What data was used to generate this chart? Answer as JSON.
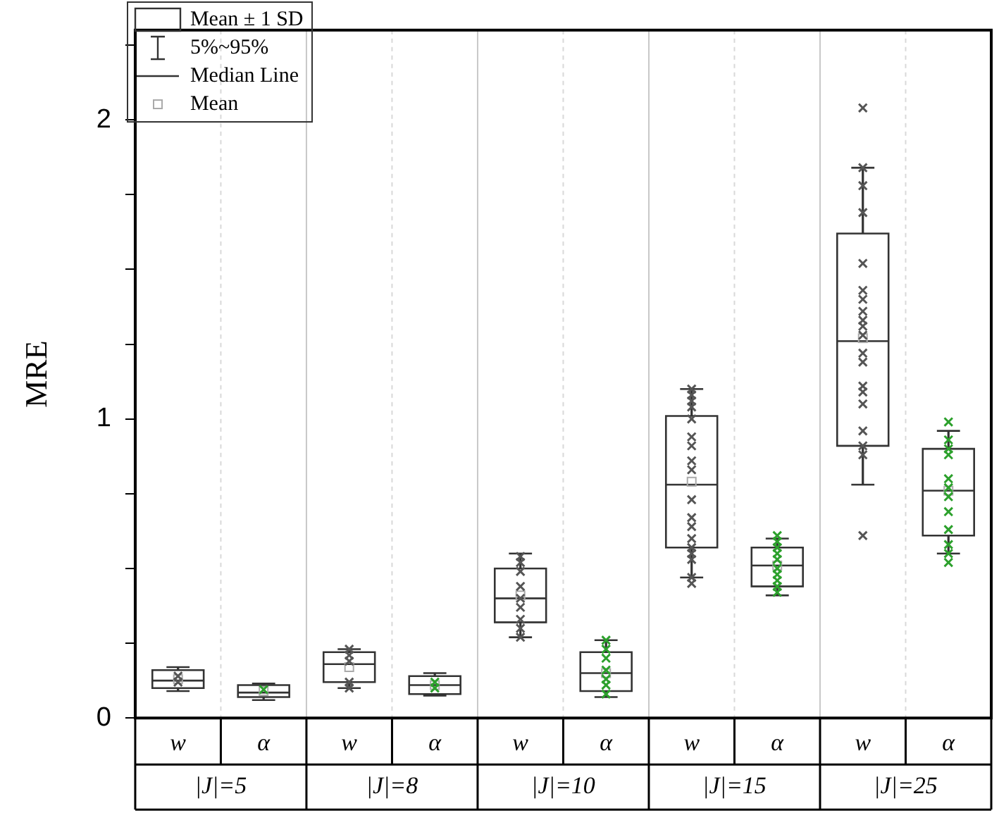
{
  "chart_data": {
    "type": "box",
    "ylabel": "MRE",
    "categories": [
      "w",
      "α",
      "w",
      "α",
      "w",
      "α",
      "w",
      "α",
      "w",
      "α"
    ],
    "ylim": [
      0,
      2.3
    ],
    "yticks": [
      0,
      {
        "value": 0.25,
        "label": null
      },
      {
        "value": 0.5,
        "label": null
      },
      {
        "value": 0.75,
        "label": null
      },
      1,
      {
        "value": 1.25,
        "label": null
      },
      {
        "value": 1.5,
        "label": null
      },
      {
        "value": 1.75,
        "label": null
      },
      2,
      {
        "value": 2.25,
        "label": null
      }
    ],
    "grid": "x",
    "marker": "cross",
    "annotations": [
      "Mean ± 1 SD",
      "5%~95%",
      "Median Line",
      "Mean",
      "|J|=5",
      "|J|=8",
      "|J|=10",
      "|J|=15",
      "|J|=25"
    ],
    "series": [
      {
        "type": "box",
        "color": "#333333",
        "boxes": [
          {
            "low": 0.09,
            "q1": 0.1,
            "median": 0.125,
            "q3": 0.16,
            "high": 0.17,
            "mean": 0.13
          },
          {
            "low": 0.06,
            "q1": 0.07,
            "median": 0.085,
            "q3": 0.11,
            "high": 0.115,
            "mean": 0.09
          },
          {
            "low": 0.1,
            "q1": 0.12,
            "median": 0.18,
            "q3": 0.22,
            "high": 0.23,
            "mean": 0.17
          },
          {
            "low": 0.075,
            "q1": 0.08,
            "median": 0.11,
            "q3": 0.14,
            "high": 0.15,
            "mean": 0.11
          },
          {
            "low": 0.27,
            "q1": 0.32,
            "median": 0.4,
            "q3": 0.5,
            "high": 0.55,
            "mean": 0.41
          },
          {
            "low": 0.07,
            "q1": 0.09,
            "median": 0.15,
            "q3": 0.22,
            "high": 0.26,
            "mean": 0.15
          },
          {
            "low": 0.47,
            "q1": 0.57,
            "median": 0.78,
            "q3": 1.01,
            "high": 1.1,
            "mean": 0.79
          },
          {
            "low": 0.41,
            "q1": 0.44,
            "median": 0.51,
            "q3": 0.57,
            "high": 0.6,
            "mean": 0.51
          },
          {
            "low": 0.78,
            "q1": 0.91,
            "median": 1.26,
            "q3": 1.62,
            "high": 1.84,
            "mean": 1.27
          },
          {
            "low": 0.55,
            "q1": 0.61,
            "median": 0.76,
            "q3": 0.9,
            "high": 0.96,
            "mean": 0.76
          }
        ]
      },
      {
        "type": "scatter",
        "colors": [
          "#555555",
          "#2ca02c",
          "#555555",
          "#2ca02c",
          "#555555",
          "#2ca02c",
          "#555555",
          "#2ca02c",
          "#555555",
          "#2ca02c"
        ],
        "values": [
          null,
          null,
          0.23,
          null,
          0.54,
          0.26,
          1.1,
          0.61,
          2.04,
          0.99
        ]
      },
      {
        "type": "scatter",
        "colors": [
          "#555555",
          "#2ca02c",
          "#555555",
          "#2ca02c",
          "#555555",
          "#2ca02c",
          "#555555",
          "#2ca02c",
          "#555555",
          "#2ca02c"
        ],
        "values": [
          0.14,
          0.095,
          0.21,
          0.12,
          0.52,
          0.23,
          1.08,
          0.59,
          1.84,
          0.93
        ]
      },
      {
        "type": "scatter",
        "colors": [
          "#555555",
          "#2ca02c",
          "#555555",
          "#2ca02c",
          "#555555",
          "#2ca02c",
          "#555555",
          "#2ca02c",
          "#555555",
          "#2ca02c"
        ],
        "values": [
          0.12,
          null,
          0.19,
          0.1,
          0.49,
          0.2,
          1.06,
          0.57,
          1.78,
          0.9
        ]
      },
      {
        "type": "scatter",
        "colors": [
          "#555555",
          "#2ca02c",
          "#555555",
          "#2ca02c",
          "#555555",
          "#2ca02c",
          "#555555",
          "#2ca02c",
          "#555555",
          "#2ca02c"
        ],
        "values": [
          null,
          null,
          0.12,
          null,
          0.44,
          0.16,
          1.04,
          0.55,
          1.69,
          0.88
        ]
      },
      {
        "type": "scatter",
        "colors": [
          "#555555",
          "#2ca02c",
          "#555555",
          "#2ca02c",
          "#555555",
          "#2ca02c",
          "#555555",
          "#2ca02c",
          "#555555",
          "#2ca02c"
        ],
        "values": [
          null,
          null,
          0.1,
          null,
          0.4,
          0.13,
          1.0,
          0.53,
          1.52,
          0.8
        ]
      },
      {
        "type": "scatter",
        "colors": [
          "#555555",
          "#2ca02c",
          "#555555",
          "#2ca02c",
          "#555555",
          "#2ca02c",
          "#555555",
          "#2ca02c",
          "#555555",
          "#2ca02c"
        ],
        "values": [
          null,
          null,
          null,
          null,
          0.37,
          0.11,
          0.94,
          0.5,
          1.43,
          0.77
        ]
      },
      {
        "type": "scatter",
        "colors": [
          "#555555",
          "#2ca02c",
          "#555555",
          "#2ca02c",
          "#555555",
          "#2ca02c",
          "#555555",
          "#2ca02c",
          "#555555",
          "#2ca02c"
        ],
        "values": [
          null,
          null,
          null,
          null,
          0.33,
          0.08,
          0.91,
          0.48,
          1.4,
          0.74
        ]
      },
      {
        "type": "scatter",
        "colors": [
          "#555555",
          "#2ca02c",
          "#555555",
          "#2ca02c",
          "#555555",
          "#2ca02c",
          "#555555",
          "#2ca02c",
          "#555555",
          "#2ca02c"
        ],
        "values": [
          null,
          null,
          null,
          null,
          0.3,
          null,
          0.86,
          0.46,
          1.36,
          0.69
        ]
      },
      {
        "type": "scatter",
        "colors": [
          "#555555",
          "#2ca02c",
          "#555555",
          "#2ca02c",
          "#555555",
          "#2ca02c",
          "#555555",
          "#2ca02c",
          "#555555",
          "#2ca02c"
        ],
        "values": [
          null,
          null,
          null,
          null,
          0.27,
          null,
          0.83,
          0.44,
          1.33,
          0.63
        ]
      },
      {
        "type": "scatter",
        "colors": [
          "#555555",
          "#2ca02c",
          "#555555",
          "#2ca02c",
          "#555555",
          "#2ca02c",
          "#555555",
          "#2ca02c",
          "#555555",
          "#2ca02c"
        ],
        "values": [
          null,
          null,
          null,
          null,
          null,
          null,
          0.73,
          0.42,
          1.31,
          0.58
        ]
      },
      {
        "type": "scatter",
        "colors": [
          "#555555",
          "#2ca02c",
          "#555555",
          "#2ca02c",
          "#555555",
          "#2ca02c",
          "#555555",
          "#2ca02c",
          "#555555",
          "#2ca02c"
        ],
        "values": [
          null,
          null,
          null,
          null,
          null,
          null,
          0.67,
          null,
          1.28,
          0.55
        ]
      },
      {
        "type": "scatter",
        "colors": [
          "#555555",
          "#2ca02c",
          "#555555",
          "#2ca02c",
          "#555555",
          "#2ca02c",
          "#555555",
          "#2ca02c",
          "#555555",
          "#2ca02c"
        ],
        "values": [
          null,
          null,
          null,
          null,
          null,
          null,
          0.64,
          null,
          1.22,
          0.52
        ]
      },
      {
        "type": "scatter",
        "colors": [
          "#555555",
          "#2ca02c",
          "#555555",
          "#2ca02c",
          "#555555",
          "#2ca02c",
          "#555555",
          "#2ca02c",
          "#555555",
          "#2ca02c"
        ],
        "values": [
          null,
          null,
          null,
          null,
          null,
          null,
          0.6,
          null,
          1.19,
          null
        ]
      },
      {
        "type": "scatter",
        "colors": [
          "#555555",
          "#2ca02c",
          "#555555",
          "#2ca02c",
          "#555555",
          "#2ca02c",
          "#555555",
          "#2ca02c",
          "#555555",
          "#2ca02c"
        ],
        "values": [
          null,
          null,
          null,
          null,
          null,
          null,
          0.57,
          null,
          1.11,
          null
        ]
      },
      {
        "type": "scatter",
        "colors": [
          "#555555",
          "#2ca02c",
          "#555555",
          "#2ca02c",
          "#555555",
          "#2ca02c",
          "#555555",
          "#2ca02c",
          "#555555",
          "#2ca02c"
        ],
        "values": [
          null,
          null,
          null,
          null,
          null,
          null,
          0.55,
          null,
          1.09,
          null
        ]
      },
      {
        "type": "scatter",
        "colors": [
          "#555555",
          "#2ca02c",
          "#555555",
          "#2ca02c",
          "#555555",
          "#2ca02c",
          "#555555",
          "#2ca02c",
          "#555555",
          "#2ca02c"
        ],
        "values": [
          null,
          null,
          null,
          null,
          null,
          null,
          0.53,
          null,
          1.05,
          null
        ]
      },
      {
        "type": "scatter",
        "colors": [
          "#555555",
          "#2ca02c",
          "#555555",
          "#2ca02c",
          "#555555",
          "#2ca02c",
          "#555555",
          "#2ca02c",
          "#555555",
          "#2ca02c"
        ],
        "values": [
          null,
          null,
          null,
          null,
          null,
          null,
          0.47,
          null,
          0.96,
          null
        ]
      },
      {
        "type": "scatter",
        "colors": [
          "#555555",
          "#2ca02c",
          "#555555",
          "#2ca02c",
          "#555555",
          "#2ca02c",
          "#555555",
          "#2ca02c",
          "#555555",
          "#2ca02c"
        ],
        "values": [
          null,
          null,
          null,
          null,
          null,
          null,
          0.45,
          null,
          0.91,
          null
        ]
      },
      {
        "type": "scatter",
        "colors": [
          "#555555",
          "#2ca02c",
          "#555555",
          "#2ca02c",
          "#555555",
          "#2ca02c",
          "#555555",
          "#2ca02c",
          "#555555",
          "#2ca02c"
        ],
        "values": [
          null,
          null,
          null,
          null,
          null,
          null,
          null,
          null,
          0.88,
          null
        ]
      },
      {
        "type": "scatter",
        "colors": [
          "#555555",
          "#2ca02c",
          "#555555",
          "#2ca02c",
          "#555555",
          "#2ca02c",
          "#555555",
          "#2ca02c",
          "#555555",
          "#2ca02c"
        ],
        "values": [
          null,
          null,
          null,
          null,
          null,
          null,
          null,
          null,
          0.61,
          null
        ]
      }
    ]
  }
}
